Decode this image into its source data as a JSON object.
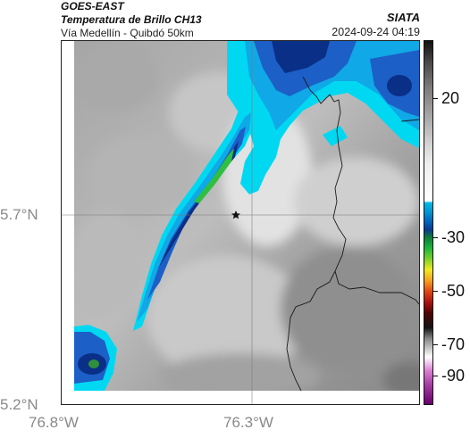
{
  "header": {
    "satellite": "GOES-EAST",
    "product": "Temperatura de Brillo CH13",
    "region": "Vía Medellín - Quibdó 50km",
    "agency": "SIATA",
    "timestamp": "2024-09-24 04:19"
  },
  "axes": {
    "lat_ticks": [
      "5.7°N",
      "5.2°N"
    ],
    "lon_ticks": [
      "76.8°W",
      "76.3°W"
    ]
  },
  "colorbar": {
    "labels": [
      "20",
      "-30",
      "-50",
      "-70",
      "-90"
    ],
    "palette": [
      "#111111",
      "#7c7c7c",
      "#ffffff",
      "#00b8e6",
      "#0a3a8e",
      "#1bb53a",
      "#f2ea20",
      "#e04516",
      "#4d0505",
      "#d97ad0",
      "#6a006a"
    ]
  },
  "map": {
    "marker": "star-icon",
    "cloud_colors": {
      "cold": "#0a2f86",
      "medium": "#1c5fc6",
      "light": "#10a8e6",
      "cyan": "#00d8f2",
      "green": "#2fbf42"
    }
  }
}
